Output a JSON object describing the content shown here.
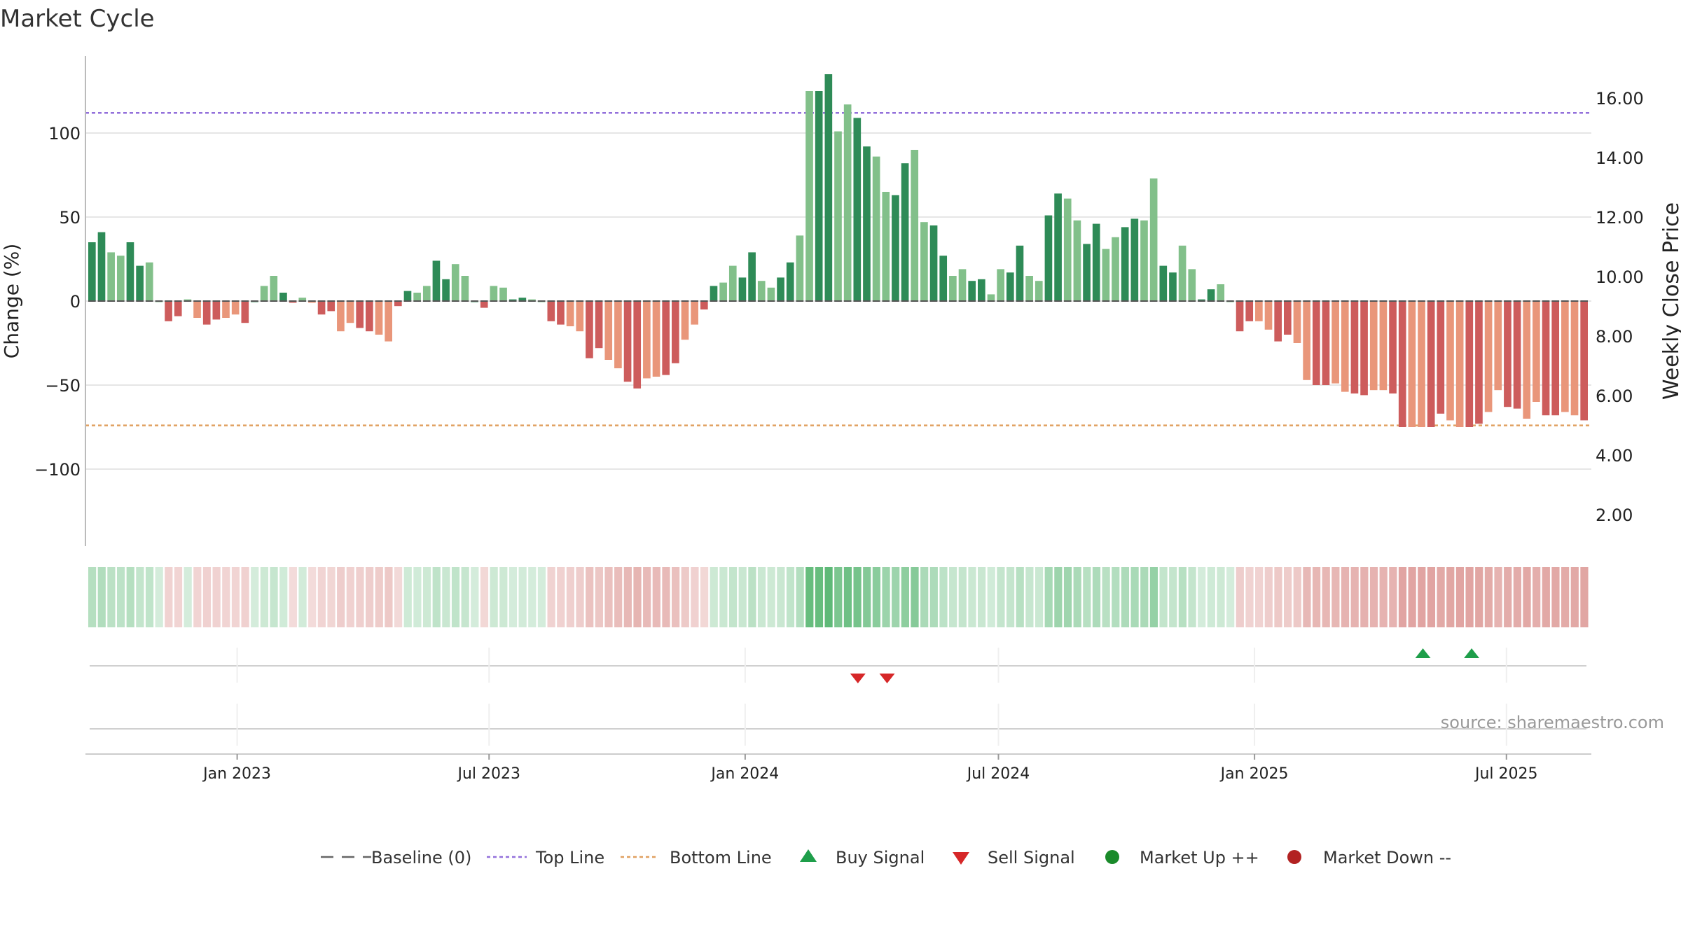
{
  "title": "Market Cycle",
  "source": "source: sharemaestro.com",
  "colors": {
    "bar_up_strong": "#2e8b57",
    "bar_up_light": "#82c08a",
    "bar_down_strong": "#cd5c5c",
    "bar_down_light": "#e9967a",
    "top_line": "#9370db",
    "bottom_line": "#e0a060",
    "buy": "#1e9e4a",
    "sell": "#d62728",
    "market_up": "#1a8a2a",
    "market_down": "#b22222",
    "grid": "#e6e6e6",
    "axis_text": "#222222"
  },
  "legend": [
    {
      "kind": "baseline",
      "label": "Baseline (0)"
    },
    {
      "kind": "top",
      "label": "Top Line"
    },
    {
      "kind": "bottom",
      "label": "Bottom Line"
    },
    {
      "kind": "buy",
      "label": "Buy Signal"
    },
    {
      "kind": "sell",
      "label": "Sell Signal"
    },
    {
      "kind": "up",
      "label": "Market Up ++"
    },
    {
      "kind": "down",
      "label": "Market Down --"
    }
  ],
  "chart_data": {
    "type": "bar",
    "title": "Market Cycle",
    "ylabel": "Change (%)",
    "y2label": "Weekly Close Price",
    "ylim": [
      -145,
      145
    ],
    "yticks": [
      -100,
      -50,
      0,
      50,
      100
    ],
    "ytick_labels": [
      "−100",
      "−50",
      "0",
      "50",
      "100"
    ],
    "y2lim": [
      1.0,
      17.5
    ],
    "y2ticks": [
      2,
      4,
      6,
      8,
      10,
      12,
      14,
      16
    ],
    "y2tick_labels": [
      "2.00",
      "4.00",
      "6.00",
      "8.00",
      "10.00",
      "12.00",
      "14.00",
      "16.00"
    ],
    "top_line": 112,
    "bottom_line": -74,
    "baseline": 0,
    "x_start": "2022-09-16",
    "x_end": "2025-08-29",
    "bar_interval_days": 7,
    "xticks": [
      "2023-01-01",
      "2023-07-01",
      "2024-01-01",
      "2024-07-01",
      "2025-01-01",
      "2025-07-01"
    ],
    "xtick_labels": [
      "Jan 2023",
      "Jul 2023",
      "Jan 2024",
      "Jul 2024",
      "Jan 2025",
      "Jul 2025"
    ],
    "values": [
      35,
      41,
      29,
      27,
      35,
      21,
      23,
      0,
      -12,
      -9,
      1,
      -10,
      -14,
      -11,
      -10,
      -8,
      -13,
      0,
      9,
      15,
      5,
      -1,
      2,
      -1,
      -8,
      -6,
      -18,
      -13,
      -16,
      -18,
      -20,
      -24,
      -3,
      6,
      5,
      9,
      24,
      13,
      22,
      15,
      0,
      -4,
      9,
      8,
      1,
      2,
      1,
      0,
      -12,
      -14,
      -15,
      -18,
      -34,
      -28,
      -35,
      -40,
      -48,
      -52,
      -46,
      -45,
      -44,
      -37,
      -23,
      -14,
      -5,
      9,
      11,
      21,
      14,
      29,
      12,
      8,
      14,
      23,
      39,
      125,
      125,
      135,
      101,
      117,
      109,
      92,
      86,
      65,
      63,
      82,
      90,
      47,
      45,
      27,
      15,
      19,
      12,
      13,
      4,
      19,
      17,
      33,
      15,
      12,
      51,
      64,
      61,
      48,
      34,
      46,
      31,
      38,
      44,
      49,
      48,
      73,
      21,
      17,
      33,
      19,
      1,
      7,
      10,
      0,
      -18,
      -12,
      -12,
      -17,
      -24,
      -20,
      -25,
      -47,
      -50,
      -50,
      -49,
      -54,
      -55,
      -56,
      -53,
      -53,
      -55,
      -75,
      -75,
      -75,
      -75,
      -67,
      -71,
      -75,
      -75,
      -73,
      -66,
      -53,
      -63,
      -64,
      -70,
      -60,
      -68,
      -68,
      -66,
      -68,
      -71
    ],
    "price_line": "none",
    "cycle_strip": "color band of bar intensity per week",
    "buy_signals": [
      "2025-05-02",
      "2025-06-06"
    ],
    "sell_signals": [
      "2024-03-22",
      "2024-04-12"
    ],
    "grid": true,
    "legend_position": "bottom-center"
  }
}
